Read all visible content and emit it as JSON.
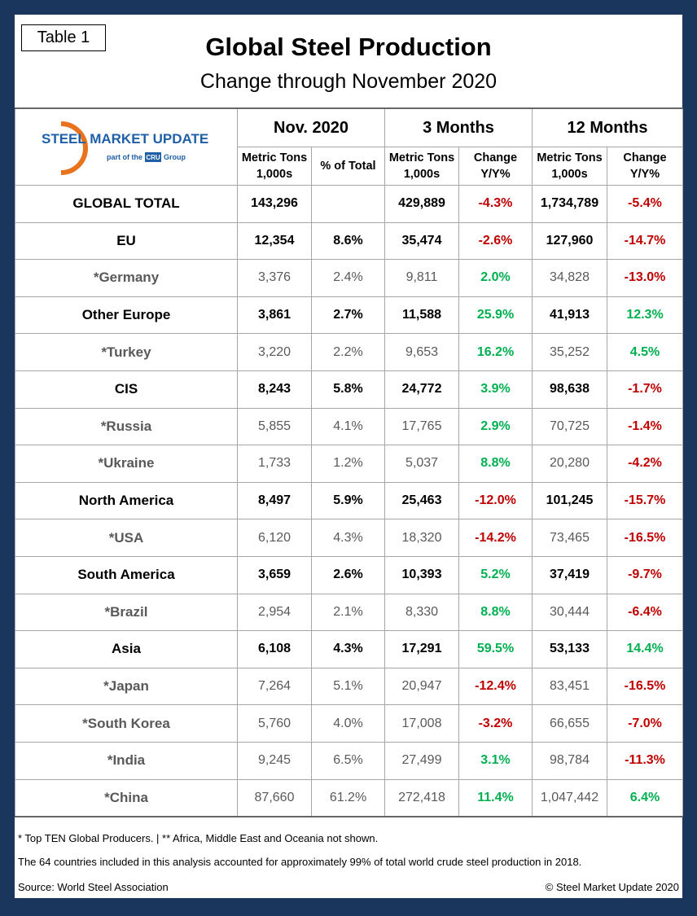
{
  "label": "Table 1",
  "title": "Global Steel Production",
  "subtitle": "Change through November 2020",
  "logo": {
    "name": "STEEL MARKET UPDATE",
    "tagline": "part of the",
    "brand": "CRU",
    "group": "Group"
  },
  "table": {
    "groups": [
      "Nov. 2020",
      "3 Months",
      "12 Months"
    ],
    "columns": [
      [
        "Metric Tons",
        "1,000s"
      ],
      [
        "% of Total"
      ],
      [
        "Metric Tons",
        "1,000s"
      ],
      [
        "Change",
        "Y/Y%"
      ],
      [
        "Metric Tons",
        "1,000s"
      ],
      [
        "Change",
        "Y/Y%"
      ]
    ],
    "rows": [
      {
        "name": "GLOBAL TOTAL",
        "cells": [
          "143,296",
          null,
          "429,889",
          "-4.3%",
          "1,734,789",
          "-5.4%"
        ]
      },
      {
        "name": "EU",
        "cells": [
          "12,354",
          "8.6%",
          "35,474",
          "-2.6%",
          "127,960",
          "-14.7%"
        ]
      },
      {
        "name": "*Germany",
        "cells": [
          "3,376",
          "2.4%",
          "9,811",
          "2.0%",
          "34,828",
          "-13.0%"
        ]
      },
      {
        "name": "Other Europe",
        "cells": [
          "3,861",
          "2.7%",
          "11,588",
          "25.9%",
          "41,913",
          "12.3%"
        ]
      },
      {
        "name": "*Turkey",
        "cells": [
          "3,220",
          "2.2%",
          "9,653",
          "16.2%",
          "35,252",
          "4.5%"
        ]
      },
      {
        "name": "CIS",
        "cells": [
          "8,243",
          "5.8%",
          "24,772",
          "3.9%",
          "98,638",
          "-1.7%"
        ]
      },
      {
        "name": "*Russia",
        "cells": [
          "5,855",
          "4.1%",
          "17,765",
          "2.9%",
          "70,725",
          "-1.4%"
        ]
      },
      {
        "name": "*Ukraine",
        "cells": [
          "1,733",
          "1.2%",
          "5,037",
          "8.8%",
          "20,280",
          "-4.2%"
        ]
      },
      {
        "name": "North America",
        "cells": [
          "8,497",
          "5.9%",
          "25,463",
          "-12.0%",
          "101,245",
          "-15.7%"
        ]
      },
      {
        "name": "*USA",
        "cells": [
          "6,120",
          "4.3%",
          "18,320",
          "-14.2%",
          "73,465",
          "-16.5%"
        ]
      },
      {
        "name": "South America",
        "cells": [
          "3,659",
          "2.6%",
          "10,393",
          "5.2%",
          "37,419",
          "-9.7%"
        ]
      },
      {
        "name": "*Brazil",
        "cells": [
          "2,954",
          "2.1%",
          "8,330",
          "8.8%",
          "30,444",
          "-6.4%"
        ]
      },
      {
        "name": "Asia",
        "cells": [
          "6,108",
          "4.3%",
          "17,291",
          "59.5%",
          "53,133",
          "14.4%"
        ]
      },
      {
        "name": "*Japan",
        "cells": [
          "7,264",
          "5.1%",
          "20,947",
          "-12.4%",
          "83,451",
          "-16.5%"
        ]
      },
      {
        "name": "*South Korea",
        "cells": [
          "5,760",
          "4.0%",
          "17,008",
          "-3.2%",
          "66,655",
          "-7.0%"
        ]
      },
      {
        "name": "*India",
        "cells": [
          "9,245",
          "6.5%",
          "27,499",
          "3.1%",
          "98,784",
          "-11.3%"
        ]
      },
      {
        "name": "*China",
        "cells": [
          "87,660",
          "61.2%",
          "272,418",
          "11.4%",
          "1,047,442",
          "6.4%"
        ]
      }
    ]
  },
  "footnotes": [
    "* Top TEN Global Producers. | ** Africa, Middle East and Oceania not shown.",
    "The 64 countries included in this analysis accounted for approximately 99% of total world crude steel production in 2018."
  ],
  "source": "Source: World Steel Association",
  "copyright": "© Steel Market Update 2020"
}
